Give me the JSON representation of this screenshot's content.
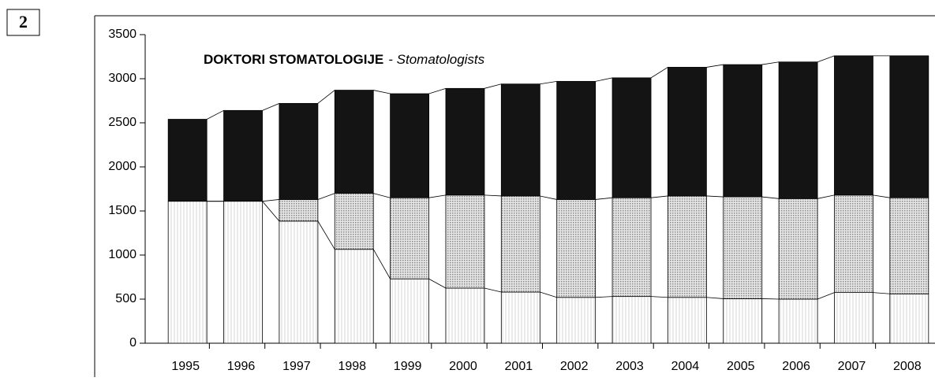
{
  "figure_label": "2",
  "chart_data": {
    "type": "stacked_bar",
    "title": "DOKTORI STOMATOLOGIJE",
    "subtitle": "- Stomatologists",
    "categories": [
      "1995",
      "1996",
      "1997",
      "1998",
      "1999",
      "2000",
      "2001",
      "2002",
      "2003",
      "2004",
      "2005",
      "2006",
      "2007",
      "2008"
    ],
    "series": [
      {
        "color": "#dcdcdc",
        "values": [
          1610,
          1610,
          1385,
          1065,
          730,
          625,
          580,
          520,
          530,
          520,
          505,
          500,
          575,
          560
        ]
      },
      {
        "color": "#b0b0b0",
        "values": [
          0,
          0,
          245,
          635,
          920,
          1055,
          1090,
          1110,
          1120,
          1150,
          1155,
          1140,
          1105,
          1090
        ]
      },
      {
        "color": "#141414",
        "values": [
          930,
          1030,
          1090,
          1170,
          1180,
          1210,
          1270,
          1340,
          1360,
          1460,
          1500,
          1550,
          1580,
          1610
        ]
      }
    ],
    "ylim": [
      0,
      3500
    ],
    "yticks": [
      0,
      500,
      1000,
      1500,
      2000,
      2500,
      3000,
      3500
    ]
  }
}
